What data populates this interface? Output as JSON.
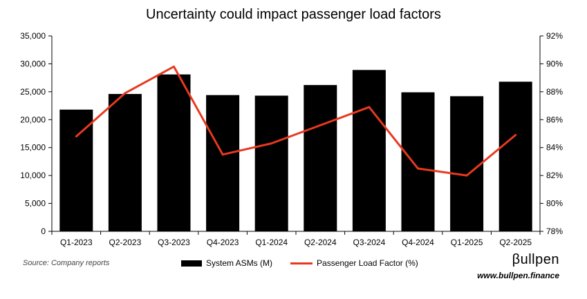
{
  "source": "Source: Company reports",
  "brand": {
    "name": "βullpen",
    "url": "www.bullpen.finance"
  },
  "colors": {
    "bars": "#000000",
    "line": "#e8391e",
    "axis": "#000000"
  },
  "chart_data": {
    "type": "bar",
    "title": "Uncertainty could impact passenger load factors",
    "categories": [
      "Q1-2023",
      "Q2-2023",
      "Q3-2023",
      "Q4-2023",
      "Q1-2024",
      "Q2-2024",
      "Q3-2024",
      "Q4-2024",
      "Q1-2025",
      "Q2-2025"
    ],
    "series": [
      {
        "name": "System ASMs (M)",
        "type": "bar",
        "axis": "left",
        "values": [
          21800,
          24600,
          28100,
          24400,
          24300,
          26200,
          28900,
          24900,
          24200,
          26800
        ]
      },
      {
        "name": "Passenger Load Factor (%)",
        "type": "line",
        "axis": "right",
        "values": [
          84.8,
          87.9,
          89.8,
          83.5,
          84.3,
          85.6,
          86.9,
          82.5,
          82.0,
          84.9
        ]
      }
    ],
    "y_left": {
      "min": 0,
      "max": 35000,
      "ticks": [
        "0",
        "5,000",
        "10,000",
        "15,000",
        "20,000",
        "25,000",
        "30,000",
        "35,000"
      ]
    },
    "y_right": {
      "min": 78,
      "max": 92,
      "ticks": [
        "78%",
        "80%",
        "82%",
        "84%",
        "86%",
        "88%",
        "90%",
        "92%"
      ]
    },
    "legend_position": "bottom"
  }
}
